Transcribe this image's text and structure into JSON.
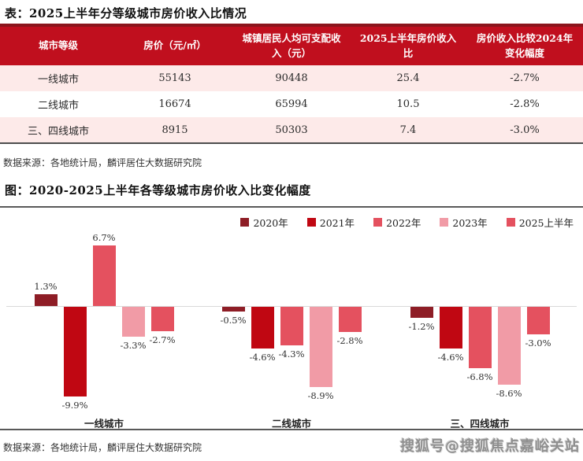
{
  "table_section": {
    "title": "表：2025上半年分等级城市房价收入比情况",
    "columns": [
      "城市等级",
      "房价（元/㎡）",
      "城镇居民人均可支配收入（元）",
      "2025上半年房价收入比",
      "房价收入比较2024年变化幅度"
    ],
    "rows": [
      [
        "一线城市",
        "55143",
        "90448",
        "25.4",
        "-2.7%"
      ],
      [
        "二线城市",
        "16674",
        "65994",
        "10.5",
        "-2.8%"
      ],
      [
        "三、四线城市",
        "8915",
        "50303",
        "7.4",
        "-3.0%"
      ]
    ],
    "source": "数据来源：各地统计局，麟评居住大数据研究院"
  },
  "chart_section": {
    "title": "图：2020-2025上半年各等级城市房价收入比变化幅度",
    "source": "数据来源：各地统计局，麟评居住大数据研究院"
  },
  "chart_data": {
    "type": "bar",
    "title": "2020-2025上半年各等级城市房价收入比变化幅度",
    "categories": [
      "一线城市",
      "二线城市",
      "三、四线城市"
    ],
    "series": [
      {
        "name": "2020年",
        "color": "#8e1d26",
        "values": [
          1.3,
          -0.5,
          -1.2
        ]
      },
      {
        "name": "2021年",
        "color": "#c00712",
        "values": [
          -9.9,
          -4.6,
          -4.6
        ]
      },
      {
        "name": "2022年",
        "color": "#e4515f",
        "values": [
          6.7,
          -4.3,
          -6.8
        ]
      },
      {
        "name": "2023年",
        "color": "#f19ba6",
        "values": [
          -3.3,
          -8.9,
          -8.6
        ]
      },
      {
        "name": "2025上半年",
        "color": "#e4515f",
        "values": [
          -2.7,
          -2.8,
          -3.0
        ]
      }
    ],
    "value_suffix": "%",
    "ylim": [
      -11,
      8
    ],
    "grid": false,
    "legend_position": "top-right",
    "axis_color": "#d9d9d9"
  },
  "watermark": "搜狐号@搜狐焦点嘉峪关站",
  "colors": {
    "header_bg": "#c00f1e",
    "header_accent": "#8b151c",
    "row_alt_bg": "#fdeae9",
    "section_border": "#595959"
  }
}
